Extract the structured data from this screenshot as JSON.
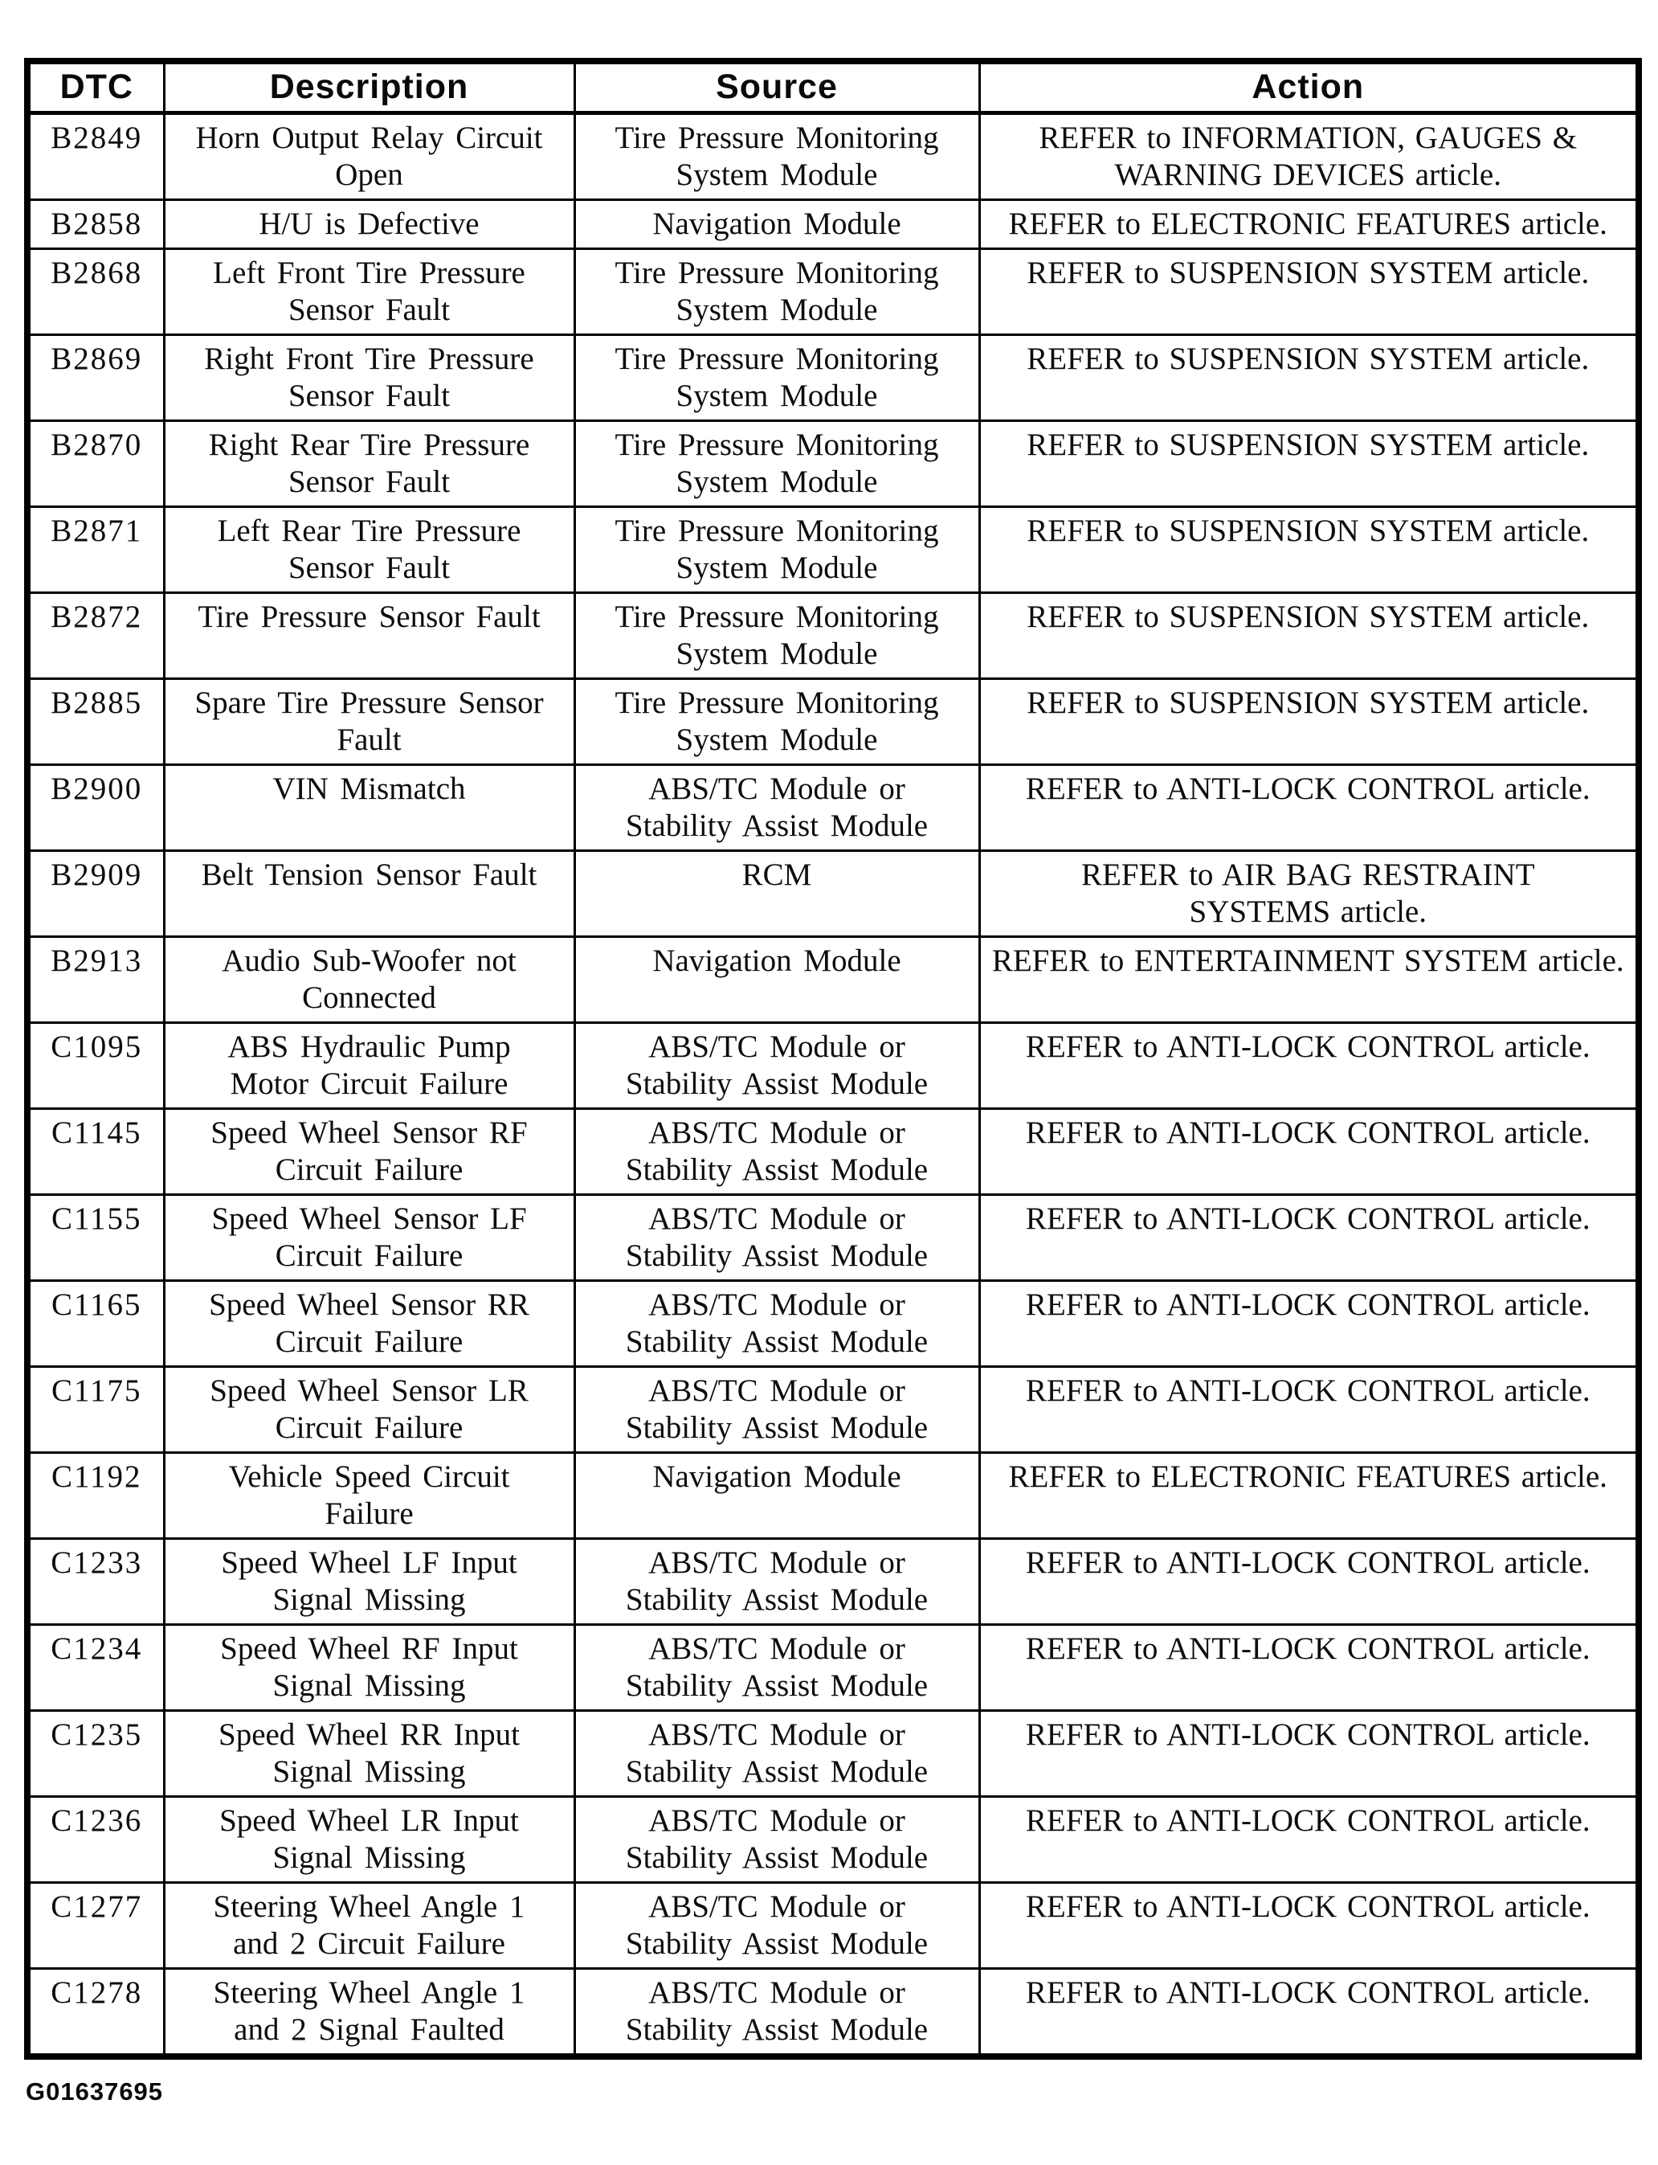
{
  "page": {
    "figure_id": "G01637695"
  },
  "colors": {
    "ink": "#0a0a0a",
    "paper": "#ffffff"
  },
  "table": {
    "columns": [
      "DTC",
      "Description",
      "Source",
      "Action"
    ],
    "rows": [
      {
        "dtc": "B2849",
        "description": "Horn Output Relay Circuit\nOpen",
        "source": "Tire Pressure Monitoring\nSystem Module",
        "action": "REFER to INFORMATION, GAUGES &\nWARNING DEVICES article."
      },
      {
        "dtc": "B2858",
        "description": "H/U is Defective",
        "source": "Navigation Module",
        "action": "REFER to ELECTRONIC FEATURES article."
      },
      {
        "dtc": "B2868",
        "description": "Left Front Tire Pressure\nSensor Fault",
        "source": "Tire Pressure Monitoring\nSystem Module",
        "action": "REFER to SUSPENSION SYSTEM article."
      },
      {
        "dtc": "B2869",
        "description": "Right Front Tire Pressure\nSensor Fault",
        "source": "Tire Pressure Monitoring\nSystem Module",
        "action": "REFER to SUSPENSION SYSTEM article."
      },
      {
        "dtc": "B2870",
        "description": "Right Rear Tire Pressure\nSensor Fault",
        "source": "Tire Pressure Monitoring\nSystem Module",
        "action": "REFER to SUSPENSION SYSTEM article."
      },
      {
        "dtc": "B2871",
        "description": "Left Rear Tire Pressure\nSensor Fault",
        "source": "Tire Pressure Monitoring\nSystem Module",
        "action": "REFER to SUSPENSION SYSTEM article."
      },
      {
        "dtc": "B2872",
        "description": "Tire Pressure Sensor Fault",
        "source": "Tire Pressure Monitoring\nSystem Module",
        "action": "REFER to SUSPENSION SYSTEM article."
      },
      {
        "dtc": "B2885",
        "description": "Spare Tire Pressure Sensor\nFault",
        "source": "Tire Pressure Monitoring\nSystem Module",
        "action": "REFER to SUSPENSION SYSTEM article."
      },
      {
        "dtc": "B2900",
        "description": "VIN Mismatch",
        "source": "ABS/TC Module or\nStability Assist Module",
        "action": "REFER to ANTI-LOCK CONTROL article."
      },
      {
        "dtc": "B2909",
        "description": "Belt Tension Sensor Fault",
        "source": "RCM",
        "action": "REFER to AIR BAG RESTRAINT\nSYSTEMS article."
      },
      {
        "dtc": "B2913",
        "description": "Audio Sub-Woofer not\nConnected",
        "source": "Navigation Module",
        "action": "REFER to ENTERTAINMENT SYSTEM article."
      },
      {
        "dtc": "C1095",
        "description": "ABS Hydraulic Pump\nMotor Circuit Failure",
        "source": "ABS/TC Module or\nStability Assist Module",
        "action": "REFER to ANTI-LOCK CONTROL article."
      },
      {
        "dtc": "C1145",
        "description": "Speed Wheel Sensor RF\nCircuit Failure",
        "source": "ABS/TC Module or\nStability Assist Module",
        "action": "REFER to ANTI-LOCK CONTROL article."
      },
      {
        "dtc": "C1155",
        "description": "Speed Wheel Sensor LF\nCircuit Failure",
        "source": "ABS/TC Module or\nStability Assist Module",
        "action": "REFER to ANTI-LOCK CONTROL article."
      },
      {
        "dtc": "C1165",
        "description": "Speed Wheel Sensor RR\nCircuit Failure",
        "source": "ABS/TC Module or\nStability Assist Module",
        "action": "REFER to ANTI-LOCK CONTROL article."
      },
      {
        "dtc": "C1175",
        "description": "Speed Wheel Sensor LR\nCircuit Failure",
        "source": "ABS/TC Module or\nStability Assist Module",
        "action": "REFER to ANTI-LOCK CONTROL article."
      },
      {
        "dtc": "C1192",
        "description": "Vehicle Speed Circuit\nFailure",
        "source": "Navigation Module",
        "action": "REFER to ELECTRONIC FEATURES article."
      },
      {
        "dtc": "C1233",
        "description": "Speed Wheel LF Input\nSignal Missing",
        "source": "ABS/TC Module or\nStability Assist Module",
        "action": "REFER to ANTI-LOCK CONTROL article."
      },
      {
        "dtc": "C1234",
        "description": "Speed Wheel RF Input\nSignal Missing",
        "source": "ABS/TC Module or\nStability Assist Module",
        "action": "REFER to ANTI-LOCK CONTROL article."
      },
      {
        "dtc": "C1235",
        "description": "Speed Wheel RR Input\nSignal Missing",
        "source": "ABS/TC Module or\nStability Assist Module",
        "action": "REFER to ANTI-LOCK CONTROL article."
      },
      {
        "dtc": "C1236",
        "description": "Speed Wheel LR Input\nSignal Missing",
        "source": "ABS/TC Module or\nStability Assist Module",
        "action": "REFER to ANTI-LOCK CONTROL article."
      },
      {
        "dtc": "C1277",
        "description": "Steering Wheel Angle 1\nand 2 Circuit Failure",
        "source": "ABS/TC Module or\nStability Assist Module",
        "action": "REFER to ANTI-LOCK CONTROL article."
      },
      {
        "dtc": "C1278",
        "description": "Steering Wheel Angle 1\nand 2 Signal Faulted",
        "source": "ABS/TC Module or\nStability Assist Module",
        "action": "REFER to ANTI-LOCK CONTROL article."
      }
    ]
  }
}
